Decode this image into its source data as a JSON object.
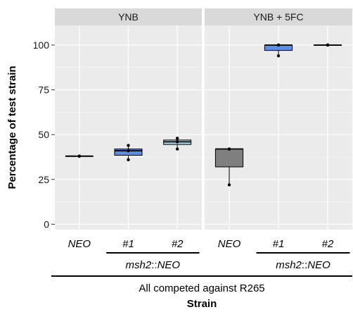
{
  "chart_data": {
    "type": "boxplot",
    "ylabel": "Percentage of test strain",
    "xlabel": "Strain",
    "footer": "All competed against R265",
    "ylim": [
      -3,
      111
    ],
    "yticks": [
      0,
      25,
      50,
      75,
      100
    ],
    "grid": true,
    "categories": [
      "NEO",
      "#1",
      "#2"
    ],
    "group_label": "msh2::NEO",
    "group_label_parts": [
      "msh2",
      "::",
      "NEO"
    ],
    "facets": [
      {
        "name": "YNB",
        "boxes": [
          {
            "category": "NEO",
            "q1": 38,
            "median": 38,
            "q3": 38,
            "min": 38,
            "max": 38,
            "color": "#6b6b6b",
            "points": [
              38,
              38,
              38
            ]
          },
          {
            "category": "#1",
            "q1": 38.5,
            "median": 41,
            "q3": 42,
            "min": 36,
            "max": 44,
            "color": "#5b8ee6",
            "points": [
              36,
              41,
              44
            ]
          },
          {
            "category": "#2",
            "q1": 44.5,
            "median": 46,
            "q3": 47,
            "min": 42,
            "max": 48,
            "color": "#a8d4e0",
            "points": [
              42,
              46,
              48
            ]
          }
        ]
      },
      {
        "name": "YNB + 5FC",
        "boxes": [
          {
            "category": "NEO",
            "q1": 32,
            "median": 42,
            "q3": 42,
            "min": 22,
            "max": 42,
            "color": "#7f7f7f",
            "points": [
              22,
              42,
              42
            ]
          },
          {
            "category": "#1",
            "q1": 97,
            "median": 100,
            "q3": 100,
            "min": 94,
            "max": 100,
            "color": "#5b8ee6",
            "points": [
              94,
              100,
              100
            ]
          },
          {
            "category": "#2",
            "q1": 100,
            "median": 100,
            "q3": 100,
            "min": 100,
            "max": 100,
            "color": "#a8d4e0",
            "points": [
              100,
              100,
              100
            ]
          }
        ]
      }
    ],
    "colors": {
      "panel_bg": "#ebebeb",
      "strip_bg": "#d9d9d9",
      "grid": "#ffffff"
    }
  }
}
